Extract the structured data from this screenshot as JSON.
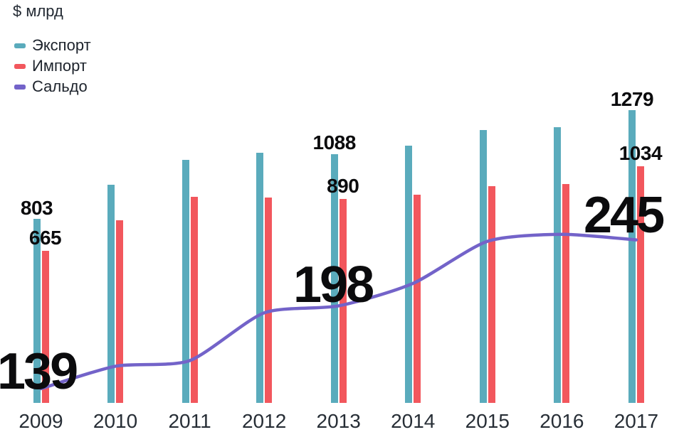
{
  "chart_data": {
    "type": "bar+line",
    "title": "$ млрд",
    "value_axis_hidden": true,
    "grid": false,
    "legend_position": "top-left",
    "categories": [
      "2009",
      "2010",
      "2011",
      "2012",
      "2013",
      "2014",
      "2015",
      "2016",
      "2017"
    ],
    "series": [
      {
        "name": "Экспорт",
        "type": "bar",
        "color": "#5aabbc",
        "values": [
          803,
          952,
          1061,
          1093,
          1088,
          1124,
          1194,
          1204,
          1279
        ]
      },
      {
        "name": "Импорт",
        "type": "bar",
        "color": "#f2575d",
        "values": [
          665,
          797,
          902,
          899,
          890,
          910,
          948,
          955,
          1034
        ]
      },
      {
        "name": "Сальдо",
        "type": "line",
        "color": "#7363c9",
        "values": [
          139,
          155,
          159,
          193,
          198,
          214,
          244,
          249,
          245
        ]
      }
    ],
    "data_labels": [
      {
        "category": "2009",
        "series": "Экспорт",
        "text": "803"
      },
      {
        "category": "2009",
        "series": "Импорт",
        "text": "665"
      },
      {
        "category": "2013",
        "series": "Экспорт",
        "text": "1088"
      },
      {
        "category": "2013",
        "series": "Импорт",
        "text": "890"
      },
      {
        "category": "2017",
        "series": "Экспорт",
        "text": "1279"
      },
      {
        "category": "2017",
        "series": "Импорт",
        "text": "1034"
      }
    ],
    "saldo_callouts": [
      {
        "category": "2009",
        "text": "139"
      },
      {
        "category": "2013",
        "text": "198"
      },
      {
        "category": "2017",
        "text": "245"
      }
    ]
  },
  "colors": {
    "export_bar": "#5aabbc",
    "import_bar": "#f2575d",
    "saldo_line": "#7363c9",
    "label_text": "#0b0b0d",
    "axis_text": "#272e36"
  }
}
